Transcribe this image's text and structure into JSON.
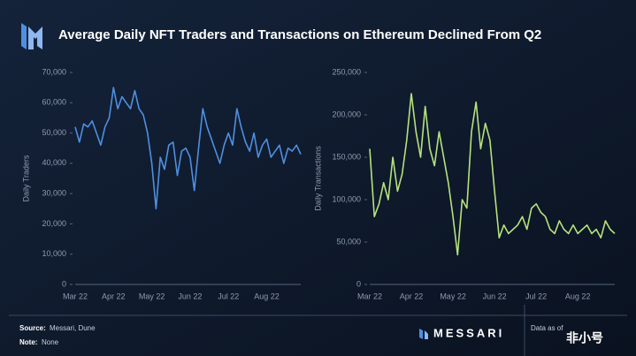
{
  "header": {
    "title": "Average Daily NFT Traders and Transactions on Ethereum Declined From Q2"
  },
  "footer": {
    "source_label": "Source:",
    "source": "Messari, Dune",
    "note_label": "Note:",
    "note": "None",
    "brand": "MESSARI",
    "date_label": "Data as of",
    "watermark": "非小号"
  },
  "chart_data": [
    {
      "type": "line",
      "ylabel": "Daily Traders",
      "color": "#4f8fe0",
      "categories": [
        "Mar 22",
        null,
        null,
        null,
        null,
        null,
        null,
        null,
        null,
        "Apr 22",
        null,
        null,
        null,
        null,
        null,
        null,
        null,
        null,
        "May 22",
        null,
        null,
        null,
        null,
        null,
        null,
        null,
        null,
        "Jun 22",
        null,
        null,
        null,
        null,
        null,
        null,
        null,
        null,
        "Jul 22",
        null,
        null,
        null,
        null,
        null,
        null,
        null,
        null,
        "Aug 22",
        null,
        null,
        null,
        null,
        null,
        null,
        null,
        null
      ],
      "values": [
        52000,
        47000,
        53000,
        52000,
        54000,
        50000,
        46000,
        52000,
        55000,
        65000,
        58000,
        62000,
        60000,
        58000,
        64000,
        58000,
        56000,
        50000,
        40000,
        25000,
        42000,
        38000,
        46000,
        47000,
        36000,
        44000,
        45000,
        42000,
        31000,
        45000,
        58000,
        52000,
        48000,
        44000,
        40000,
        46000,
        50000,
        46000,
        58000,
        52000,
        47000,
        44000,
        50000,
        42000,
        46000,
        48000,
        42000,
        44000,
        46000,
        40000,
        45000,
        44000,
        46000,
        43000
      ],
      "ylim": [
        0,
        70000
      ],
      "yticks": [
        0,
        {
          "value": 10000,
          "label": "10,000"
        },
        {
          "value": 20000,
          "label": "20,000"
        },
        {
          "value": 30000,
          "label": "30,000"
        },
        {
          "value": 40000,
          "label": "40,000"
        },
        {
          "value": 50000,
          "label": "50,000"
        },
        {
          "value": 60000,
          "label": "60,000"
        },
        {
          "value": 70000,
          "label": "70,000"
        }
      ]
    },
    {
      "type": "line",
      "ylabel": "Daily Transactions",
      "color": "#b6e27c",
      "categories": [
        "Mar 22",
        null,
        null,
        null,
        null,
        null,
        null,
        null,
        null,
        "Apr 22",
        null,
        null,
        null,
        null,
        null,
        null,
        null,
        null,
        "May 22",
        null,
        null,
        null,
        null,
        null,
        null,
        null,
        null,
        "Jun 22",
        null,
        null,
        null,
        null,
        null,
        null,
        null,
        null,
        "Jul 22",
        null,
        null,
        null,
        null,
        null,
        null,
        null,
        null,
        "Aug 22",
        null,
        null,
        null,
        null,
        null,
        null,
        null,
        null
      ],
      "values": [
        160000,
        80000,
        95000,
        120000,
        100000,
        150000,
        110000,
        130000,
        170000,
        225000,
        180000,
        150000,
        210000,
        160000,
        140000,
        180000,
        150000,
        120000,
        80000,
        35000,
        100000,
        90000,
        180000,
        215000,
        160000,
        190000,
        170000,
        110000,
        55000,
        70000,
        60000,
        65000,
        70000,
        80000,
        65000,
        90000,
        95000,
        85000,
        80000,
        65000,
        60000,
        75000,
        65000,
        60000,
        70000,
        60000,
        65000,
        70000,
        60000,
        65000,
        55000,
        75000,
        65000,
        60000
      ],
      "ylim": [
        0,
        250000
      ],
      "yticks": [
        0,
        {
          "value": 50000,
          "label": "50,000"
        },
        {
          "value": 100000,
          "label": "100,000"
        },
        {
          "value": 150000,
          "label": "150,000"
        },
        {
          "value": 200000,
          "label": "200,000"
        },
        {
          "value": 250000,
          "label": "250,000"
        }
      ]
    }
  ]
}
